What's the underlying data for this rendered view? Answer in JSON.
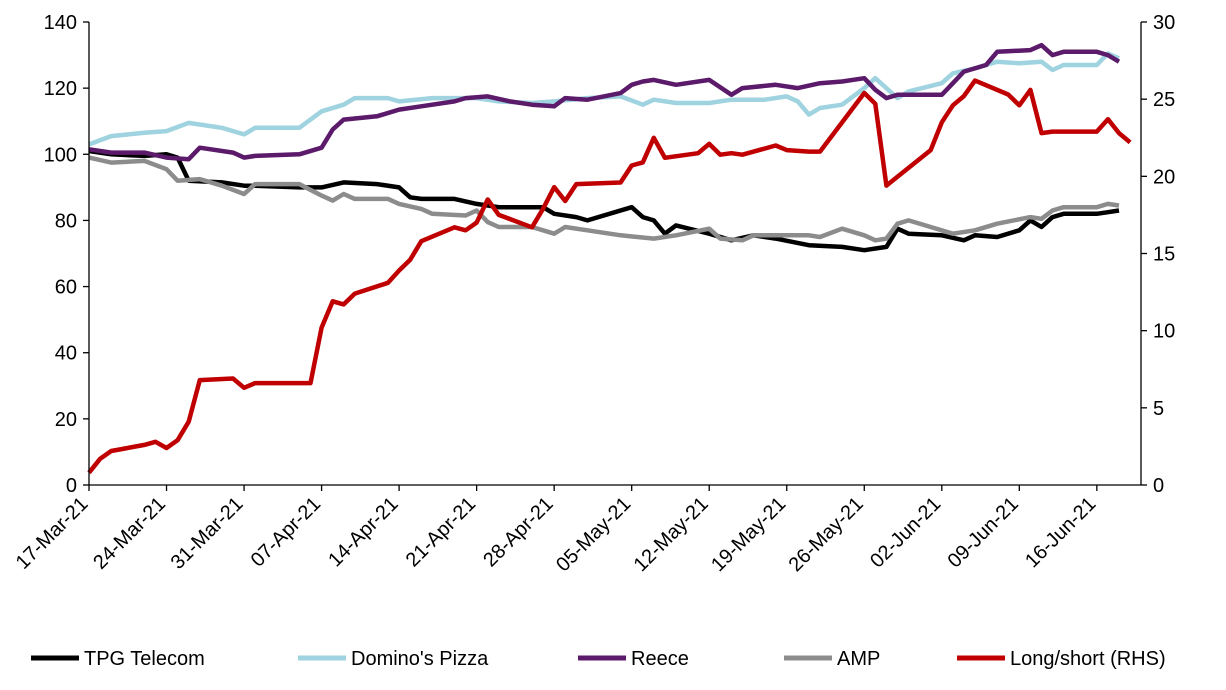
{
  "chart_data": {
    "type": "line",
    "title": "",
    "xlabel": "",
    "ylabel": "",
    "y2label": "",
    "x_ticks": [
      "17-Mar-21",
      "24-Mar-21",
      "31-Mar-21",
      "07-Apr-21",
      "14-Apr-21",
      "21-Apr-21",
      "28-Apr-21",
      "05-May-21",
      "12-May-21",
      "19-May-21",
      "26-May-21",
      "02-Jun-21",
      "09-Jun-21",
      "16-Jun-21"
    ],
    "x_range": [
      "17-Mar-21",
      "18-Jun-21"
    ],
    "ylim": [
      0,
      140
    ],
    "y_ticks": [
      0,
      20,
      40,
      60,
      80,
      100,
      120,
      140
    ],
    "y2lim": [
      0,
      30
    ],
    "y2_ticks": [
      0,
      5,
      10,
      15,
      20,
      25,
      30
    ],
    "grid": false,
    "legend_position": "bottom",
    "series": [
      {
        "name": "TPG Telecom",
        "axis": "left",
        "color": "#000000",
        "points": [
          [
            "17-Mar-21",
            101
          ],
          [
            "19-Mar-21",
            100
          ],
          [
            "22-Mar-21",
            99.5
          ],
          [
            "24-Mar-21",
            100
          ],
          [
            "25-Mar-21",
            99
          ],
          [
            "26-Mar-21",
            92
          ],
          [
            "29-Mar-21",
            91.5
          ],
          [
            "31-Mar-21",
            90.5
          ],
          [
            "01-Apr-21",
            90.5
          ],
          [
            "05-Apr-21",
            90
          ],
          [
            "07-Apr-21",
            90
          ],
          [
            "09-Apr-21",
            91.5
          ],
          [
            "12-Apr-21",
            91
          ],
          [
            "14-Apr-21",
            90
          ],
          [
            "15-Apr-21",
            87
          ],
          [
            "16-Apr-21",
            86.5
          ],
          [
            "19-Apr-21",
            86.5
          ],
          [
            "21-Apr-21",
            85
          ],
          [
            "23-Apr-21",
            84
          ],
          [
            "26-Apr-21",
            84
          ],
          [
            "27-Apr-21",
            84
          ],
          [
            "28-Apr-21",
            82
          ],
          [
            "30-Apr-21",
            81
          ],
          [
            "01-May-21",
            80
          ],
          [
            "05-May-21",
            84
          ],
          [
            "06-May-21",
            81
          ],
          [
            "07-May-21",
            80
          ],
          [
            "08-May-21",
            76
          ],
          [
            "09-May-21",
            78.5
          ],
          [
            "12-May-21",
            76
          ],
          [
            "14-May-21",
            74
          ],
          [
            "16-May-21",
            75.5
          ],
          [
            "18-May-21",
            74.5
          ],
          [
            "21-May-21",
            72.5
          ],
          [
            "24-May-21",
            72
          ],
          [
            "26-May-21",
            71
          ],
          [
            "28-May-21",
            72
          ],
          [
            "29-May-21",
            77.5
          ],
          [
            "30-May-21",
            76
          ],
          [
            "02-Jun-21",
            75.5
          ],
          [
            "04-Jun-21",
            74
          ],
          [
            "05-Jun-21",
            75.5
          ],
          [
            "07-Jun-21",
            75
          ],
          [
            "09-Jun-21",
            77
          ],
          [
            "10-Jun-21",
            80
          ],
          [
            "11-Jun-21",
            78
          ],
          [
            "12-Jun-21",
            81
          ],
          [
            "13-Jun-21",
            82
          ],
          [
            "16-Jun-21",
            82
          ],
          [
            "17-Jun-21",
            82.5
          ],
          [
            "18-Jun-21",
            83
          ]
        ]
      },
      {
        "name": "Domino's Pizza",
        "axis": "left",
        "color": "#9fd3df",
        "points": [
          [
            "17-Mar-21",
            103
          ],
          [
            "19-Mar-21",
            105.5
          ],
          [
            "22-Mar-21",
            106.5
          ],
          [
            "24-Mar-21",
            107
          ],
          [
            "26-Mar-21",
            109.5
          ],
          [
            "29-Mar-21",
            108
          ],
          [
            "31-Mar-21",
            106
          ],
          [
            "01-Apr-21",
            108
          ],
          [
            "05-Apr-21",
            108
          ],
          [
            "07-Apr-21",
            113
          ],
          [
            "09-Apr-21",
            115
          ],
          [
            "10-Apr-21",
            117
          ],
          [
            "13-Apr-21",
            117
          ],
          [
            "14-Apr-21",
            116
          ],
          [
            "17-Apr-21",
            117
          ],
          [
            "21-Apr-21",
            117
          ],
          [
            "23-Apr-21",
            116
          ],
          [
            "26-Apr-21",
            115.5
          ],
          [
            "28-Apr-21",
            116
          ],
          [
            "01-May-21",
            117
          ],
          [
            "04-May-21",
            117.5
          ],
          [
            "06-May-21",
            115
          ],
          [
            "07-May-21",
            116.5
          ],
          [
            "09-May-21",
            115.5
          ],
          [
            "12-May-21",
            115.5
          ],
          [
            "14-May-21",
            116.5
          ],
          [
            "17-May-21",
            116.5
          ],
          [
            "19-May-21",
            117.5
          ],
          [
            "20-May-21",
            116
          ],
          [
            "21-May-21",
            112
          ],
          [
            "22-May-21",
            114
          ],
          [
            "24-May-21",
            115
          ],
          [
            "26-May-21",
            120
          ],
          [
            "27-May-21",
            123
          ],
          [
            "29-May-21",
            117
          ],
          [
            "30-May-21",
            119
          ],
          [
            "02-Jun-21",
            121.5
          ],
          [
            "03-Jun-21",
            124.5
          ],
          [
            "05-Jun-21",
            126
          ],
          [
            "07-Jun-21",
            128
          ],
          [
            "09-Jun-21",
            127.5
          ],
          [
            "11-Jun-21",
            128
          ],
          [
            "12-Jun-21",
            125.5
          ],
          [
            "13-Jun-21",
            127
          ],
          [
            "16-Jun-21",
            127
          ],
          [
            "17-Jun-21",
            130.5
          ],
          [
            "18-Jun-21",
            129
          ]
        ]
      },
      {
        "name": "Reece",
        "axis": "left",
        "color": "#5c1a6b",
        "points": [
          [
            "17-Mar-21",
            101.5
          ],
          [
            "19-Mar-21",
            100.5
          ],
          [
            "22-Mar-21",
            100.5
          ],
          [
            "24-Mar-21",
            99
          ],
          [
            "26-Mar-21",
            98.5
          ],
          [
            "27-Mar-21",
            102
          ],
          [
            "30-Mar-21",
            100.5
          ],
          [
            "31-Mar-21",
            99
          ],
          [
            "01-Apr-21",
            99.5
          ],
          [
            "05-Apr-21",
            100
          ],
          [
            "07-Apr-21",
            102
          ],
          [
            "08-Apr-21",
            107.5
          ],
          [
            "09-Apr-21",
            110.5
          ],
          [
            "12-Apr-21",
            111.5
          ],
          [
            "14-Apr-21",
            113.5
          ],
          [
            "16-Apr-21",
            114.5
          ],
          [
            "19-Apr-21",
            116
          ],
          [
            "20-Apr-21",
            117
          ],
          [
            "22-Apr-21",
            117.5
          ],
          [
            "24-Apr-21",
            116
          ],
          [
            "26-Apr-21",
            115
          ],
          [
            "28-Apr-21",
            114.5
          ],
          [
            "29-Apr-21",
            117
          ],
          [
            "01-May-21",
            116.5
          ],
          [
            "04-May-21",
            118.5
          ],
          [
            "05-May-21",
            121
          ],
          [
            "06-May-21",
            122
          ],
          [
            "07-May-21",
            122.5
          ],
          [
            "09-May-21",
            121
          ],
          [
            "12-May-21",
            122.5
          ],
          [
            "14-May-21",
            118
          ],
          [
            "15-May-21",
            120
          ],
          [
            "18-May-21",
            121
          ],
          [
            "20-May-21",
            120
          ],
          [
            "22-May-21",
            121.5
          ],
          [
            "24-May-21",
            122
          ],
          [
            "26-May-21",
            123
          ],
          [
            "27-May-21",
            119.5
          ],
          [
            "28-May-21",
            117
          ],
          [
            "29-May-21",
            118
          ],
          [
            "02-Jun-21",
            118
          ],
          [
            "03-Jun-21",
            121.5
          ],
          [
            "04-Jun-21",
            125
          ],
          [
            "06-Jun-21",
            127
          ],
          [
            "07-Jun-21",
            131
          ],
          [
            "10-Jun-21",
            131.5
          ],
          [
            "11-Jun-21",
            133
          ],
          [
            "12-Jun-21",
            130
          ],
          [
            "13-Jun-21",
            131
          ],
          [
            "16-Jun-21",
            131
          ],
          [
            "17-Jun-21",
            130
          ],
          [
            "18-Jun-21",
            128
          ]
        ]
      },
      {
        "name": "AMP",
        "axis": "left",
        "color": "#8c8c8c",
        "points": [
          [
            "17-Mar-21",
            99
          ],
          [
            "19-Mar-21",
            97.5
          ],
          [
            "22-Mar-21",
            98
          ],
          [
            "24-Mar-21",
            95.5
          ],
          [
            "25-Mar-21",
            92
          ],
          [
            "27-Mar-21",
            92.5
          ],
          [
            "29-Mar-21",
            90.5
          ],
          [
            "31-Mar-21",
            88
          ],
          [
            "01-Apr-21",
            91
          ],
          [
            "05-Apr-21",
            91
          ],
          [
            "07-Apr-21",
            87.5
          ],
          [
            "08-Apr-21",
            86
          ],
          [
            "09-Apr-21",
            88
          ],
          [
            "10-Apr-21",
            86.5
          ],
          [
            "13-Apr-21",
            86.5
          ],
          [
            "14-Apr-21",
            85
          ],
          [
            "16-Apr-21",
            83.5
          ],
          [
            "17-Apr-21",
            82
          ],
          [
            "20-Apr-21",
            81.5
          ],
          [
            "21-Apr-21",
            83
          ],
          [
            "22-Apr-21",
            79.5
          ],
          [
            "23-Apr-21",
            78
          ],
          [
            "26-Apr-21",
            78
          ],
          [
            "28-Apr-21",
            76
          ],
          [
            "29-Apr-21",
            78
          ],
          [
            "01-May-21",
            77
          ],
          [
            "04-May-21",
            75.5
          ],
          [
            "07-May-21",
            74.5
          ],
          [
            "09-May-21",
            75.5
          ],
          [
            "12-May-21",
            77.5
          ],
          [
            "13-May-21",
            74.5
          ],
          [
            "15-May-21",
            74
          ],
          [
            "16-May-21",
            75.5
          ],
          [
            "18-May-21",
            75.5
          ],
          [
            "21-May-21",
            75.5
          ],
          [
            "22-May-21",
            75
          ],
          [
            "24-May-21",
            77.5
          ],
          [
            "26-May-21",
            75.5
          ],
          [
            "27-May-21",
            74
          ],
          [
            "28-May-21",
            74.5
          ],
          [
            "29-May-21",
            79
          ],
          [
            "30-May-21",
            80
          ],
          [
            "01-Jun-21",
            78
          ],
          [
            "03-Jun-21",
            76
          ],
          [
            "05-Jun-21",
            77
          ],
          [
            "07-Jun-21",
            79
          ],
          [
            "10-Jun-21",
            81
          ],
          [
            "11-Jun-21",
            80.5
          ],
          [
            "12-Jun-21",
            83
          ],
          [
            "13-Jun-21",
            84
          ],
          [
            "16-Jun-21",
            84
          ],
          [
            "17-Jun-21",
            85
          ],
          [
            "18-Jun-21",
            84.5
          ]
        ]
      },
      {
        "name": "Long/short (RHS)",
        "axis": "right",
        "color": "#c00000",
        "points": [
          [
            "17-Mar-21",
            0.8
          ],
          [
            "18-Mar-21",
            1.7
          ],
          [
            "19-Mar-21",
            2.2
          ],
          [
            "22-Mar-21",
            2.6
          ],
          [
            "23-Mar-21",
            2.8
          ],
          [
            "24-Mar-21",
            2.4
          ],
          [
            "25-Mar-21",
            2.9
          ],
          [
            "26-Mar-21",
            4.1
          ],
          [
            "27-Mar-21",
            6.8
          ],
          [
            "30-Mar-21",
            6.9
          ],
          [
            "31-Mar-21",
            6.3
          ],
          [
            "01-Apr-21",
            6.6
          ],
          [
            "06-Apr-21",
            6.6
          ],
          [
            "07-Apr-21",
            10.2
          ],
          [
            "08-Apr-21",
            11.9
          ],
          [
            "09-Apr-21",
            11.7
          ],
          [
            "10-Apr-21",
            12.4
          ],
          [
            "13-Apr-21",
            13.1
          ],
          [
            "14-Apr-21",
            13.9
          ],
          [
            "15-Apr-21",
            14.6
          ],
          [
            "16-Apr-21",
            15.8
          ],
          [
            "19-Apr-21",
            16.7
          ],
          [
            "20-Apr-21",
            16.5
          ],
          [
            "21-Apr-21",
            17.0
          ],
          [
            "22-Apr-21",
            18.5
          ],
          [
            "23-Apr-21",
            17.5
          ],
          [
            "26-Apr-21",
            16.7
          ],
          [
            "27-Apr-21",
            17.9
          ],
          [
            "28-Apr-21",
            19.3
          ],
          [
            "29-Apr-21",
            18.4
          ],
          [
            "30-Apr-21",
            19.5
          ],
          [
            "04-May-21",
            19.6
          ],
          [
            "05-May-21",
            20.7
          ],
          [
            "06-May-21",
            20.9
          ],
          [
            "07-May-21",
            22.5
          ],
          [
            "08-May-21",
            21.2
          ],
          [
            "11-May-21",
            21.5
          ],
          [
            "12-May-21",
            22.1
          ],
          [
            "13-May-21",
            21.4
          ],
          [
            "14-May-21",
            21.5
          ],
          [
            "15-May-21",
            21.4
          ],
          [
            "18-May-21",
            22.0
          ],
          [
            "19-May-21",
            21.7
          ],
          [
            "21-May-21",
            21.6
          ],
          [
            "22-May-21",
            21.6
          ],
          [
            "26-May-21",
            25.4
          ],
          [
            "27-May-21",
            24.7
          ],
          [
            "28-May-21",
            19.4
          ],
          [
            "01-Jun-21",
            21.7
          ],
          [
            "02-Jun-21",
            23.5
          ],
          [
            "03-Jun-21",
            24.6
          ],
          [
            "04-Jun-21",
            25.2
          ],
          [
            "05-Jun-21",
            26.2
          ],
          [
            "08-Jun-21",
            25.3
          ],
          [
            "09-Jun-21",
            24.6
          ],
          [
            "10-Jun-21",
            25.6
          ],
          [
            "11-Jun-21",
            22.8
          ],
          [
            "12-Jun-21",
            22.9
          ],
          [
            "16-Jun-21",
            22.9
          ],
          [
            "17-Jun-21",
            23.7
          ],
          [
            "18-Jun-21",
            22.8
          ],
          [
            "19-Jun-21",
            22.2
          ]
        ]
      }
    ]
  }
}
